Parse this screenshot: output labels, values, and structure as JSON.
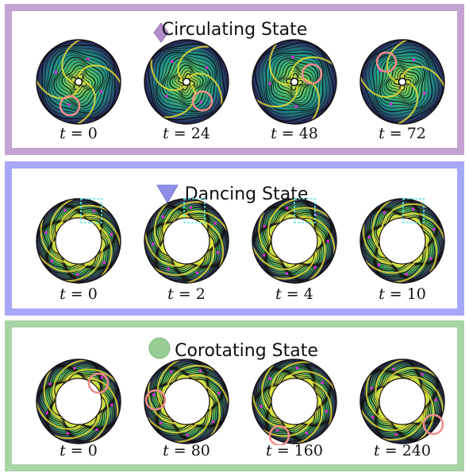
{
  "panels": [
    {
      "title": "Circulating State",
      "border_color": "#c4a2d2",
      "marker": "diamond",
      "marker_color": "#b38ccc",
      "times": [
        "0",
        "24",
        "48",
        "72"
      ],
      "kind": "disk"
    },
    {
      "title": "Dancing State",
      "border_color": "#a7a7f7",
      "marker": "triangle-down",
      "marker_color": "#8f8fe6",
      "times": [
        "0",
        "2",
        "4",
        "10"
      ],
      "kind": "annulus"
    },
    {
      "title": "Corotating State",
      "border_color": "#a8d5a5",
      "marker": "circle",
      "marker_color": "#97cc94",
      "times": [
        "0",
        "80",
        "160",
        "240"
      ],
      "kind": "annulus"
    }
  ],
  "time_symbol": "t",
  "colors": {
    "field_dark": "#2a1f5a",
    "field_mid": "#1f8f8a",
    "field_green": "#4ec26a",
    "field_yellow": "#f4e83a",
    "vortex": "#d62fd6",
    "highlight_circle": "#f08c8c",
    "dashed_box": "#5fe8e8"
  }
}
